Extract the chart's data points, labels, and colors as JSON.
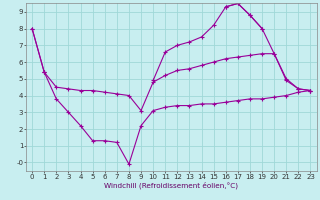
{
  "xlabel": "Windchill (Refroidissement éolien,°C)",
  "background_color": "#c8eef0",
  "grid_color": "#a0d8d8",
  "line_color": "#990099",
  "xlim": [
    -0.5,
    23.5
  ],
  "ylim": [
    -0.5,
    9.5
  ],
  "xticks": [
    0,
    1,
    2,
    3,
    4,
    5,
    6,
    7,
    8,
    9,
    10,
    11,
    12,
    13,
    14,
    15,
    16,
    17,
    18,
    19,
    20,
    21,
    22,
    23
  ],
  "yticks": [
    0,
    1,
    2,
    3,
    4,
    5,
    6,
    7,
    8,
    9
  ],
  "ytick_labels": [
    "-0",
    "1",
    "2",
    "3",
    "4",
    "5",
    "6",
    "7",
    "8",
    "9"
  ],
  "series": [
    [
      8.0,
      5.4,
      3.8,
      3.0,
      2.2,
      1.3,
      1.3,
      1.2,
      -0.1,
      2.2,
      3.1,
      3.3,
      3.4,
      3.4,
      3.5,
      3.5,
      3.6,
      3.7,
      3.8,
      3.8,
      3.9,
      4.0,
      4.2,
      4.3
    ],
    [
      null,
      5.4,
      null,
      null,
      null,
      null,
      null,
      null,
      null,
      null,
      4.9,
      6.6,
      7.0,
      7.2,
      7.5,
      8.2,
      9.3,
      9.5,
      8.8,
      8.0,
      null,
      null,
      null,
      null
    ],
    [
      null,
      null,
      null,
      null,
      null,
      null,
      null,
      null,
      null,
      null,
      null,
      null,
      null,
      null,
      null,
      null,
      9.3,
      9.5,
      8.8,
      8.0,
      6.5,
      4.9,
      4.4,
      4.3
    ],
    [
      8.0,
      5.4,
      4.5,
      4.4,
      4.3,
      4.3,
      4.2,
      4.1,
      4.0,
      3.1,
      4.8,
      5.2,
      5.5,
      5.6,
      5.8,
      6.0,
      6.2,
      6.3,
      6.4,
      6.5,
      6.5,
      5.0,
      4.4,
      4.3
    ]
  ]
}
